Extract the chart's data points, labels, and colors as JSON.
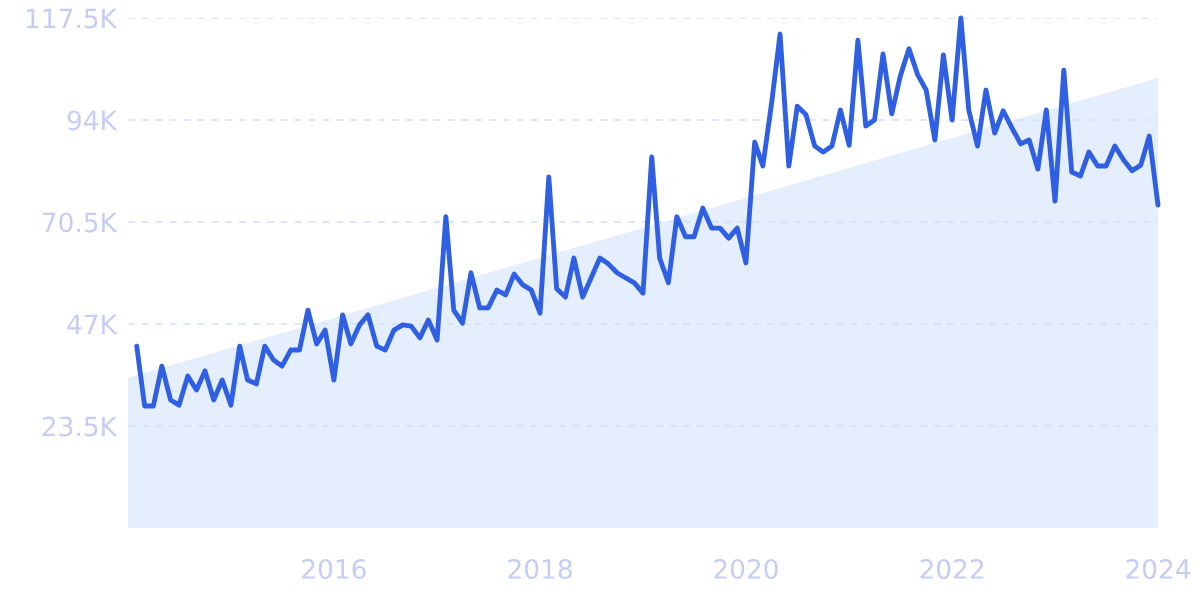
{
  "chart_data": {
    "type": "line",
    "series": [
      {
        "type": "area",
        "color": "#e4eefc",
        "x": [
          "2014-01",
          "2024-01"
        ],
        "values": [
          34600,
          103700
        ]
      },
      {
        "color": "#2f5fe3",
        "x": [
          "2014-02",
          "2014-03",
          "2014-04",
          "2014-05",
          "2014-06",
          "2014-07",
          "2014-08",
          "2014-09",
          "2014-10",
          "2014-11",
          "2014-12",
          "2015-01",
          "2015-02",
          "2015-03",
          "2015-04",
          "2015-05",
          "2015-06",
          "2015-07",
          "2015-08",
          "2015-09",
          "2015-10",
          "2015-11",
          "2015-12",
          "2016-01",
          "2016-02",
          "2016-03",
          "2016-04",
          "2016-05",
          "2016-06",
          "2016-07",
          "2016-08",
          "2016-09",
          "2016-10",
          "2016-11",
          "2016-12",
          "2017-01",
          "2017-02",
          "2017-03",
          "2017-04",
          "2017-05",
          "2017-06",
          "2017-07",
          "2017-08",
          "2017-09",
          "2017-10",
          "2017-11",
          "2017-12",
          "2018-01",
          "2018-02",
          "2018-03",
          "2018-04",
          "2018-05",
          "2018-06",
          "2018-07",
          "2018-08",
          "2018-09",
          "2018-10",
          "2018-11",
          "2018-12",
          "2019-01",
          "2019-02",
          "2019-03",
          "2019-04",
          "2019-05",
          "2019-06",
          "2019-07",
          "2019-08",
          "2019-09",
          "2019-10",
          "2019-11",
          "2019-12",
          "2020-01",
          "2020-02",
          "2020-03",
          "2020-04",
          "2020-05",
          "2020-06",
          "2020-07",
          "2020-08",
          "2020-09",
          "2020-10",
          "2020-11",
          "2020-12",
          "2021-01",
          "2021-02",
          "2021-03",
          "2021-04",
          "2021-05",
          "2021-06",
          "2021-07",
          "2021-08",
          "2021-09",
          "2021-10",
          "2021-11",
          "2021-12",
          "2022-01",
          "2022-02",
          "2022-03",
          "2022-04",
          "2022-05",
          "2022-06",
          "2022-07",
          "2022-08",
          "2022-09",
          "2022-10",
          "2022-11",
          "2022-12",
          "2023-01",
          "2023-02",
          "2023-03",
          "2023-04",
          "2023-05",
          "2023-06",
          "2023-07",
          "2023-08",
          "2023-09",
          "2023-10",
          "2023-11",
          "2023-12",
          "2024-01"
        ],
        "values": [
          41900,
          28100,
          28100,
          37300,
          29500,
          28300,
          35000,
          31800,
          36200,
          29500,
          34100,
          28300,
          41900,
          34100,
          33200,
          41900,
          38700,
          37300,
          41000,
          41000,
          50200,
          42400,
          45600,
          34100,
          49100,
          42400,
          46800,
          49100,
          41900,
          41000,
          45600,
          46800,
          46500,
          43800,
          47900,
          43300,
          71700,
          50200,
          47200,
          58800,
          50700,
          50700,
          54800,
          53700,
          58500,
          56000,
          54800,
          49500,
          80900,
          55100,
          53200,
          62200,
          53200,
          57600,
          62200,
          60800,
          58800,
          57600,
          56500,
          54100,
          85500,
          62200,
          56500,
          71700,
          67100,
          67100,
          73700,
          69100,
          69100,
          66800,
          69100,
          61100,
          88900,
          83400,
          97900,
          113800,
          83400,
          97200,
          95200,
          88000,
          86600,
          88000,
          96300,
          88200,
          112400,
          92600,
          94000,
          109200,
          95400,
          104100,
          110400,
          104400,
          100900,
          89400,
          109000,
          94000,
          117500,
          96300,
          88000,
          100900,
          91000,
          96100,
          92200,
          88500,
          89400,
          82700,
          96300,
          75300,
          105500,
          82000,
          81100,
          86600,
          83400,
          83400,
          88000,
          84800,
          82300,
          83600,
          90300,
          74400
        ]
      }
    ],
    "xlim": [
      "2014-01",
      "2024-01"
    ],
    "xticks": [
      "2016",
      "2018",
      "2020",
      "2022",
      "2024"
    ],
    "ylim": [
      0,
      117500
    ],
    "yticks": [
      {
        "value": 23500,
        "label": "23.5K"
      },
      {
        "value": 47000,
        "label": "47K"
      },
      {
        "value": 70500,
        "label": "70.5K"
      },
      {
        "value": 94000,
        "label": "94K"
      },
      {
        "value": 117500,
        "label": "117.5K"
      }
    ],
    "grid": "y",
    "line_style": "solid",
    "legend": false
  }
}
